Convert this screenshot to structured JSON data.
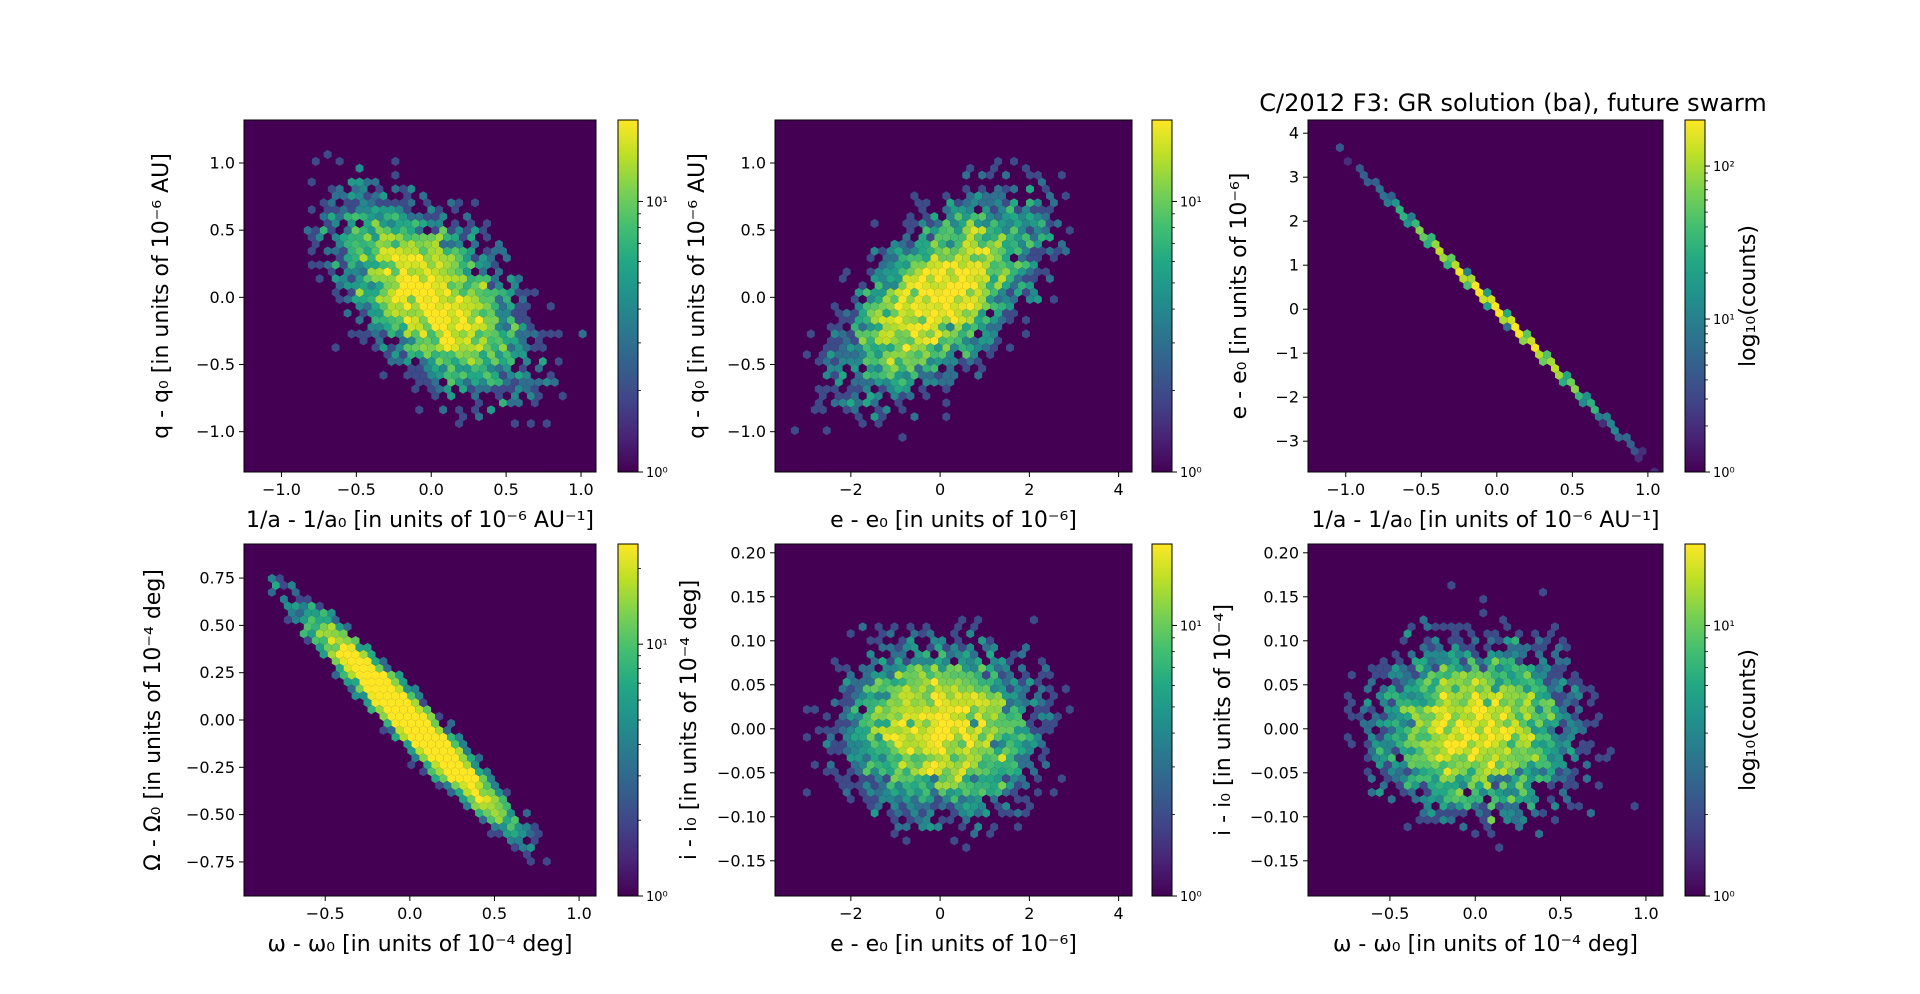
{
  "figure": {
    "title": "C/2012 F3: GR solution (ba), future swarm",
    "background": "#ffffff",
    "plot_background": "#440154",
    "colormap": "viridis"
  },
  "chart_data": [
    {
      "type": "heatmap",
      "panel": "top-left",
      "plot": "hexbin",
      "xlabel": "1/a - 1/a₀ [in units of 10⁻⁶ AU⁻¹]",
      "ylabel": "q - q₀ [in units of 10⁻⁶ AU]",
      "xlim": [
        -1.25,
        1.1
      ],
      "ylim": [
        -1.3,
        1.32
      ],
      "xticks": [
        -1.0,
        -0.5,
        0.0,
        0.5,
        1.0
      ],
      "xtick_labels": [
        "−1.0",
        "−0.5",
        "0.0",
        "0.5",
        "1.0"
      ],
      "yticks": [
        -1.0,
        -0.5,
        0.0,
        0.5,
        1.0
      ],
      "ytick_labels": [
        "−1.0",
        "−0.5",
        "0.0",
        "0.5",
        "1.0"
      ],
      "cloud": {
        "center": [
          0.0,
          0.0
        ],
        "sd": [
          0.33,
          0.38
        ],
        "correlation": -0.6,
        "n": 5000
      },
      "colorbar": {
        "scale": "log",
        "range": [
          1,
          20
        ],
        "ticks": [
          1,
          10
        ],
        "tick_labels": [
          "10⁰",
          "10¹"
        ],
        "label": ""
      }
    },
    {
      "type": "heatmap",
      "panel": "top-middle",
      "plot": "hexbin",
      "xlabel": "e - e₀ [in units of 10⁻⁶]",
      "ylabel": "q - q₀ [in units of 10⁻⁶ AU]",
      "xlim": [
        -3.7,
        4.3
      ],
      "ylim": [
        -1.3,
        1.32
      ],
      "xticks": [
        -2,
        0,
        2,
        4
      ],
      "xtick_labels": [
        "−2",
        "0",
        "2",
        "4"
      ],
      "yticks": [
        -1.0,
        -0.5,
        0.0,
        0.5,
        1.0
      ],
      "ytick_labels": [
        "−1.0",
        "−0.5",
        "0.0",
        "0.5",
        "1.0"
      ],
      "cloud": {
        "center": [
          0.0,
          0.0
        ],
        "sd": [
          1.15,
          0.38
        ],
        "correlation": 0.6,
        "n": 5000
      },
      "colorbar": {
        "scale": "log",
        "range": [
          1,
          20
        ],
        "ticks": [
          1,
          10
        ],
        "tick_labels": [
          "10⁰",
          "10¹"
        ],
        "label": ""
      }
    },
    {
      "type": "heatmap",
      "panel": "top-right",
      "plot": "hexbin",
      "xlabel": "1/a - 1/a₀ [in units of 10⁻⁶ AU⁻¹]",
      "ylabel": "e - e₀ [in units of 10⁻⁶]",
      "xlim": [
        -1.25,
        1.1
      ],
      "ylim": [
        -3.7,
        4.3
      ],
      "xticks": [
        -1.0,
        -0.5,
        0.0,
        0.5,
        1.0
      ],
      "xtick_labels": [
        "−1.0",
        "−0.5",
        "0.0",
        "0.5",
        "1.0"
      ],
      "yticks": [
        -3,
        -2,
        -1,
        0,
        1,
        2,
        3,
        4
      ],
      "ytick_labels": [
        "−3",
        "−2",
        "−1",
        "0",
        "1",
        "2",
        "3",
        "4"
      ],
      "line": {
        "x_range": [
          -1.05,
          1.05
        ],
        "slope": -3.5,
        "peak_count": 150
      },
      "colorbar": {
        "scale": "log",
        "range": [
          1,
          200
        ],
        "ticks": [
          1,
          10,
          100
        ],
        "tick_labels": [
          "10⁰",
          "10¹",
          "10²"
        ],
        "label": "log₁₀(counts)"
      }
    },
    {
      "type": "heatmap",
      "panel": "bottom-left",
      "plot": "hexbin",
      "xlabel": "ω - ω₀ [in units of 10⁻⁴ deg]",
      "ylabel": "Ω - Ω₀ [in units of 10⁻⁴ deg]",
      "xlim": [
        -0.98,
        1.1
      ],
      "ylim": [
        -0.93,
        0.93
      ],
      "xticks": [
        -0.5,
        0.0,
        0.5,
        1.0
      ],
      "xtick_labels": [
        "−0.5",
        "0.0",
        "0.5",
        "1.0"
      ],
      "yticks": [
        -0.75,
        -0.5,
        -0.25,
        0.0,
        0.25,
        0.5,
        0.75
      ],
      "ytick_labels": [
        "−0.75",
        "−0.50",
        "−0.25",
        "0.00",
        "0.25",
        "0.50",
        "0.75"
      ],
      "cloud": {
        "center": [
          0.0,
          0.0
        ],
        "sd": [
          0.3,
          0.28
        ],
        "correlation": -0.97,
        "n": 5000
      },
      "colorbar": {
        "scale": "log",
        "range": [
          1,
          25
        ],
        "ticks": [
          1,
          10
        ],
        "tick_labels": [
          "10⁰",
          "10¹"
        ],
        "label": ""
      }
    },
    {
      "type": "heatmap",
      "panel": "bottom-middle",
      "plot": "hexbin",
      "xlabel": "e - e₀ [in units of 10⁻⁶]",
      "ylabel": "i - i₀ [in units of 10⁻⁴ deg]",
      "xlim": [
        -3.7,
        4.3
      ],
      "ylim": [
        -0.19,
        0.21
      ],
      "xticks": [
        -2,
        0,
        2,
        4
      ],
      "xtick_labels": [
        "−2",
        "0",
        "2",
        "4"
      ],
      "yticks": [
        -0.15,
        -0.1,
        -0.05,
        0.0,
        0.05,
        0.1,
        0.15,
        0.2
      ],
      "ytick_labels": [
        "−0.15",
        "−0.10",
        "−0.05",
        "0.00",
        "0.05",
        "0.10",
        "0.15",
        "0.20"
      ],
      "cloud": {
        "center": [
          0.0,
          0.0
        ],
        "sd": [
          1.1,
          0.05
        ],
        "correlation": 0.0,
        "n": 5000
      },
      "colorbar": {
        "scale": "log",
        "range": [
          1,
          20
        ],
        "ticks": [
          1,
          10
        ],
        "tick_labels": [
          "10⁰",
          "10¹"
        ],
        "label": ""
      }
    },
    {
      "type": "heatmap",
      "panel": "bottom-right",
      "plot": "hexbin",
      "xlabel": "ω - ω₀ [in units of 10⁻⁴ deg]",
      "ylabel": "i - i₀ [in units of 10⁻⁴]",
      "xlim": [
        -0.98,
        1.1
      ],
      "ylim": [
        -0.19,
        0.21
      ],
      "xticks": [
        -0.5,
        0.0,
        0.5,
        1.0
      ],
      "xtick_labels": [
        "−0.5",
        "0.0",
        "0.5",
        "1.0"
      ],
      "yticks": [
        -0.15,
        -0.1,
        -0.05,
        0.0,
        0.05,
        0.1,
        0.15,
        0.2
      ],
      "ytick_labels": [
        "−0.15",
        "−0.10",
        "−0.05",
        "0.00",
        "0.05",
        "0.10",
        "0.15",
        "0.20"
      ],
      "cloud": {
        "center": [
          0.0,
          0.0
        ],
        "sd": [
          0.3,
          0.05
        ],
        "correlation": 0.0,
        "n": 5000
      },
      "colorbar": {
        "scale": "log",
        "range": [
          1,
          20
        ],
        "ticks": [
          1,
          10
        ],
        "tick_labels": [
          "10⁰",
          "10¹"
        ],
        "label": "log₁₀(counts)"
      }
    }
  ]
}
